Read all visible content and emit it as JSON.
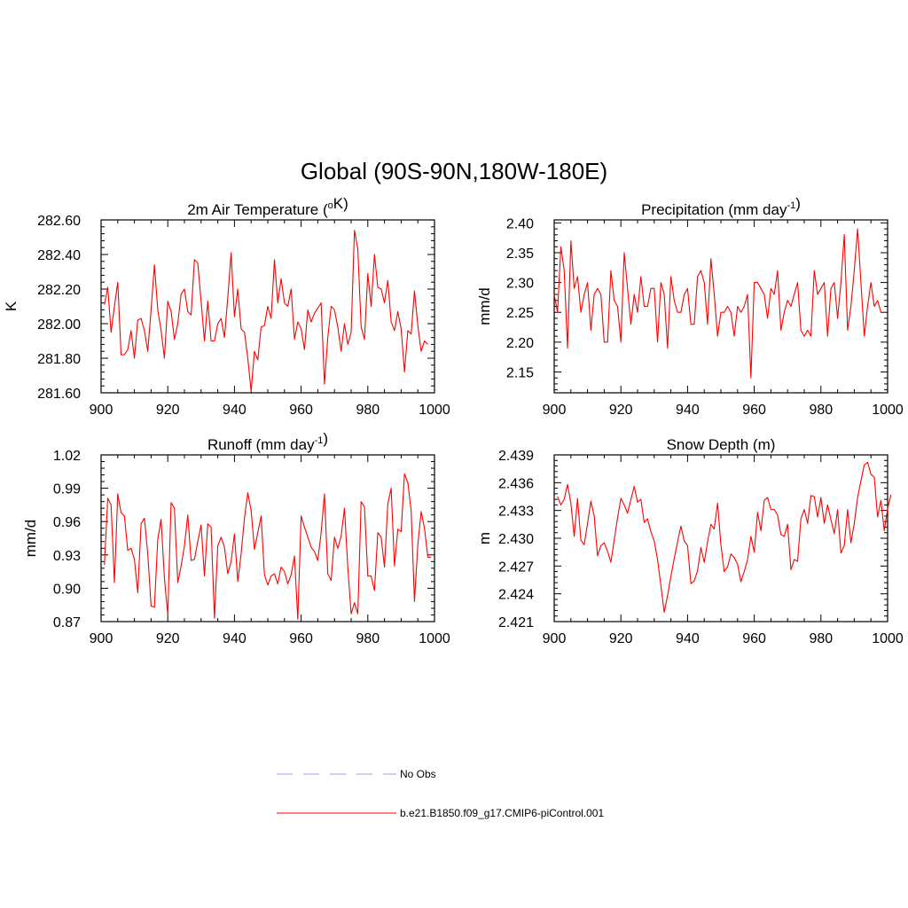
{
  "figure": {
    "title": "Global (90S-90N,180W-180E)"
  },
  "legend": {
    "items": [
      {
        "label": "No Obs",
        "color": "#9999ff",
        "dash": true
      },
      {
        "label": "b.e21.B1850.f09_g17.CMIP6-piControl.001",
        "color": "#ff0000",
        "dash": false
      }
    ]
  },
  "chart_data": [
    {
      "type": "line",
      "title": "2m Air Temperature (°K)",
      "ylabel": "K",
      "xlim": [
        900,
        1000
      ],
      "ylim": [
        281.6,
        282.6
      ],
      "xticks": [
        "900",
        "920",
        "940",
        "960",
        "980",
        "1000"
      ],
      "yticks": [
        "281.60",
        "281.80",
        "282.00",
        "282.20",
        "282.40",
        "282.60"
      ],
      "series": [
        {
          "color": "#ff0000",
          "x_start": 901,
          "values": [
            282.11,
            282.21,
            281.95,
            282.1,
            282.24,
            281.82,
            281.82,
            281.85,
            281.96,
            281.8,
            282.02,
            282.03,
            281.96,
            281.84,
            282.08,
            282.34,
            282.08,
            281.96,
            281.8,
            282.13,
            282.07,
            281.91,
            282.0,
            282.17,
            282.2,
            282.07,
            282.05,
            282.37,
            282.35,
            282.13,
            281.9,
            282.13,
            281.9,
            281.9,
            282.0,
            282.03,
            281.92,
            282.15,
            282.41,
            282.04,
            282.2,
            281.97,
            281.95,
            281.8,
            281.61,
            281.84,
            281.79,
            281.98,
            281.99,
            282.1,
            282.03,
            282.37,
            282.12,
            282.26,
            282.12,
            282.1,
            282.2,
            281.91,
            282.01,
            281.97,
            281.85,
            282.08,
            282.01,
            282.06,
            282.09,
            282.12,
            281.65,
            281.92,
            282.1,
            282.08,
            281.98,
            281.84,
            282.0,
            281.88,
            281.95,
            282.54,
            282.43,
            281.98,
            281.91,
            282.29,
            282.1,
            282.4,
            282.21,
            282.2,
            282.12,
            282.25,
            282.01,
            281.96,
            282.07,
            281.97,
            281.72,
            281.96,
            281.94,
            282.19,
            281.99,
            281.84,
            281.9,
            281.88
          ]
        }
      ]
    },
    {
      "type": "line",
      "title": "Precipitation (mm day⁻¹)",
      "ylabel": "mm/d",
      "xlim": [
        900,
        1000
      ],
      "ylim": [
        2.115,
        2.405
      ],
      "xticks": [
        "900",
        "920",
        "940",
        "960",
        "980",
        "1000"
      ],
      "yticks": [
        "2.15",
        "2.20",
        "2.25",
        "2.30",
        "2.35",
        "2.40"
      ],
      "series": [
        {
          "color": "#ff0000",
          "x_start": 900,
          "values": [
            2.28,
            2.25,
            2.36,
            2.32,
            2.19,
            2.37,
            2.29,
            2.31,
            2.25,
            2.28,
            2.3,
            2.22,
            2.28,
            2.29,
            2.28,
            2.2,
            2.2,
            2.32,
            2.27,
            2.26,
            2.2,
            2.35,
            2.29,
            2.23,
            2.28,
            2.25,
            2.31,
            2.26,
            2.26,
            2.29,
            2.29,
            2.2,
            2.3,
            2.28,
            2.19,
            2.31,
            2.27,
            2.25,
            2.25,
            2.28,
            2.29,
            2.23,
            2.23,
            2.31,
            2.32,
            2.3,
            2.23,
            2.34,
            2.28,
            2.21,
            2.25,
            2.25,
            2.26,
            2.25,
            2.21,
            2.26,
            2.25,
            2.26,
            2.28,
            2.14,
            2.3,
            2.3,
            2.29,
            2.28,
            2.24,
            2.29,
            2.28,
            2.32,
            2.22,
            2.25,
            2.27,
            2.26,
            2.28,
            2.3,
            2.22,
            2.21,
            2.22,
            2.21,
            2.32,
            2.28,
            2.29,
            2.3,
            2.21,
            2.29,
            2.3,
            2.24,
            2.3,
            2.38,
            2.22,
            2.26,
            2.32,
            2.39,
            2.3,
            2.21,
            2.26,
            2.3,
            2.26,
            2.27,
            2.25
          ]
        }
      ]
    },
    {
      "type": "line",
      "title": "Runoff (mm day⁻¹)",
      "ylabel": "mm/d",
      "xlim": [
        900,
        1000
      ],
      "ylim": [
        0.87,
        1.02
      ],
      "xticks": [
        "900",
        "920",
        "940",
        "960",
        "980",
        "1000"
      ],
      "yticks": [
        "0.87",
        "0.90",
        "0.93",
        "0.96",
        "0.99",
        "1.02"
      ],
      "series": [
        {
          "color": "#ff0000",
          "x_start": 901,
          "values": [
            0.921,
            0.981,
            0.975,
            0.905,
            0.985,
            0.968,
            0.965,
            0.934,
            0.936,
            0.926,
            0.896,
            0.958,
            0.963,
            0.931,
            0.884,
            0.883,
            0.944,
            0.962,
            0.909,
            0.876,
            0.977,
            0.972,
            0.905,
            0.92,
            0.938,
            0.966,
            0.925,
            0.926,
            0.942,
            0.957,
            0.911,
            0.958,
            0.955,
            0.873,
            0.938,
            0.946,
            0.937,
            0.913,
            0.924,
            0.949,
            0.906,
            0.931,
            0.963,
            0.986,
            0.97,
            0.935,
            0.95,
            0.965,
            0.912,
            0.903,
            0.911,
            0.913,
            0.904,
            0.919,
            0.915,
            0.904,
            0.912,
            0.929,
            0.872,
            0.965,
            0.955,
            0.946,
            0.937,
            0.933,
            0.925,
            0.95,
            0.985,
            0.913,
            0.907,
            0.946,
            0.936,
            0.947,
            0.972,
            0.919,
            0.877,
            0.887,
            0.877,
            0.978,
            0.973,
            0.911,
            0.911,
            0.898,
            0.95,
            0.946,
            0.919,
            0.976,
            0.99,
            0.92,
            0.953,
            0.951,
            1.003,
            0.995,
            0.97,
            0.888,
            0.939,
            0.969,
            0.954,
            0.928,
            0.928
          ]
        }
      ]
    },
    {
      "type": "line",
      "title": "Snow Depth (m)",
      "ylabel": "m",
      "xlim": [
        900,
        1000
      ],
      "ylim": [
        2.421,
        2.439
      ],
      "xticks": [
        "900",
        "920",
        "940",
        "960",
        "980",
        "1000"
      ],
      "yticks": [
        "2.421",
        "2.424",
        "2.427",
        "2.430",
        "2.433",
        "2.436",
        "2.439"
      ],
      "series": [
        {
          "color": "#ff0000",
          "x_start": 901,
          "values": [
            2.4345,
            2.4336,
            2.4342,
            2.4358,
            2.4338,
            2.4302,
            2.4343,
            2.4298,
            2.4293,
            2.4316,
            2.434,
            2.4324,
            2.4281,
            2.4292,
            2.4295,
            2.4286,
            2.4274,
            2.4298,
            2.4322,
            2.4343,
            2.4336,
            2.4327,
            2.4342,
            2.4356,
            2.4339,
            2.4342,
            2.4317,
            2.4321,
            2.4307,
            2.4297,
            2.4277,
            2.4249,
            2.422,
            2.4238,
            2.4259,
            2.4278,
            2.4296,
            2.4313,
            2.4297,
            2.4292,
            2.4251,
            2.4254,
            2.4265,
            2.429,
            2.4274,
            2.4296,
            2.4315,
            2.431,
            2.4338,
            2.4293,
            2.4264,
            2.4269,
            2.4283,
            2.4279,
            2.4272,
            2.4253,
            2.4264,
            2.4277,
            2.4302,
            2.4285,
            2.4328,
            2.4308,
            2.4341,
            2.4344,
            2.4331,
            2.4331,
            2.4325,
            2.4304,
            2.4302,
            2.4315,
            2.4266,
            2.4277,
            2.4275,
            2.4321,
            2.4331,
            2.4316,
            2.4346,
            2.4345,
            2.4323,
            2.4344,
            2.4316,
            2.4336,
            2.432,
            2.4305,
            2.4331,
            2.4284,
            2.4292,
            2.4331,
            2.4295,
            2.4316,
            2.4344,
            2.4362,
            2.4379,
            2.4382,
            2.4369,
            2.4366,
            2.4323,
            2.4341,
            2.4308,
            2.4332,
            2.4347
          ]
        }
      ]
    }
  ]
}
